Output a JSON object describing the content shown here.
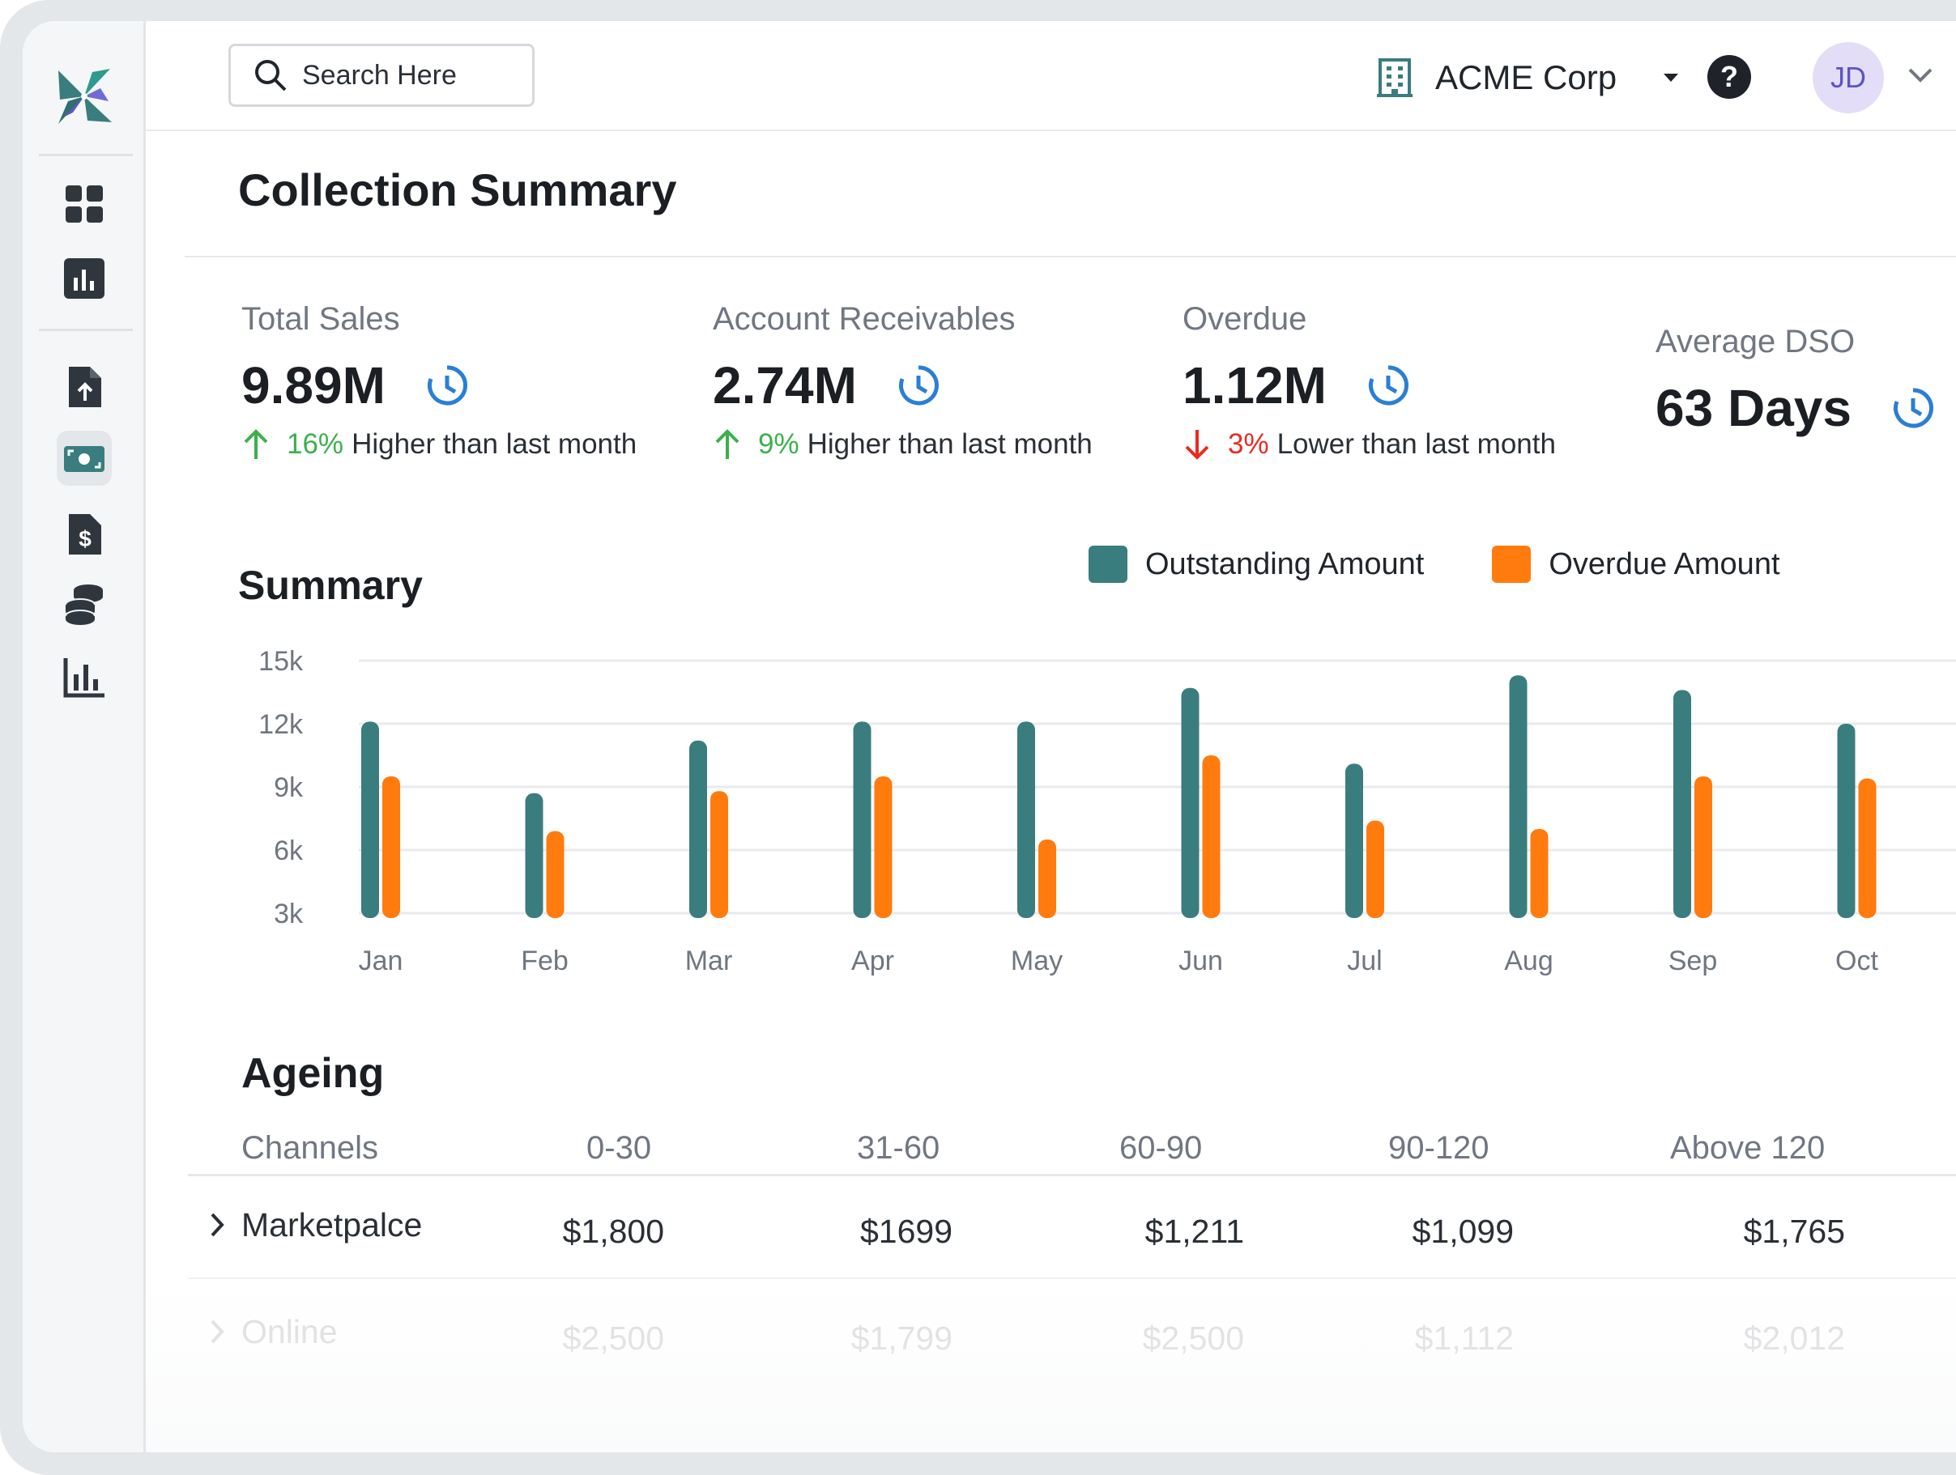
{
  "header": {
    "search_placeholder": "Search Here",
    "org_name": "ACME Corp",
    "help_label": "?",
    "avatar_initials": "JD"
  },
  "sidebar": {
    "icons": [
      "app-logo-icon",
      "dashboard-grid-icon",
      "report-chart-icon",
      "invoice-upload-icon",
      "payments-cash-icon",
      "billing-document-icon",
      "coins-icon",
      "analytics-bar-icon"
    ],
    "active": "payments-cash-icon"
  },
  "page": {
    "title": "Collection Summary"
  },
  "kpis": [
    {
      "label": "Total Sales",
      "value": "9.89M",
      "pct": "16%",
      "trend_text": "Higher than last month",
      "direction": "up"
    },
    {
      "label": "Account Receivables",
      "value": "2.74M",
      "pct": "9%",
      "trend_text": "Higher than last month",
      "direction": "up"
    },
    {
      "label": "Overdue",
      "value": "1.12M",
      "pct": "3%",
      "trend_text": "Lower than last month",
      "direction": "down"
    },
    {
      "label": "Average DSO",
      "value": "63 Days"
    }
  ],
  "chart_section": {
    "title": "Summary",
    "legend": [
      "Outstanding Amount",
      "Overdue Amount"
    ]
  },
  "chart_data": {
    "type": "bar",
    "title": "Summary",
    "categories": [
      "Jan",
      "Feb",
      "Mar",
      "Apr",
      "May",
      "Jun",
      "Jul",
      "Aug",
      "Sep",
      "Oct"
    ],
    "series": [
      {
        "name": "Outstanding Amount",
        "color": "#3a7d7e",
        "values": [
          12100,
          8700,
          11200,
          12100,
          12100,
          13700,
          10100,
          14300,
          13600,
          12000
        ]
      },
      {
        "name": "Overdue Amount",
        "color": "#ff7b0e",
        "values": [
          9500,
          6900,
          8800,
          9500,
          6500,
          10500,
          7400,
          7000,
          9500,
          9400
        ]
      }
    ],
    "y_ticks": [
      "15k",
      "12k",
      "9k",
      "6k",
      "3k"
    ],
    "ylim": [
      3000,
      15000
    ],
    "grid": true,
    "legend_position": "top-right"
  },
  "ageing": {
    "title": "Ageing",
    "columns": [
      "Channels",
      "0-30",
      "31-60",
      "60-90",
      "90-120",
      "Above 120"
    ],
    "rows": [
      {
        "channel": "Marketpalce",
        "values": [
          "$1,800",
          "$1699",
          "$1,211",
          "$1,099",
          "$1,765"
        ]
      },
      {
        "channel": "Online",
        "values": [
          "$2,500",
          "$1,799",
          "$2,500",
          "$1,112",
          "$2,012"
        ]
      }
    ]
  },
  "colors": {
    "accent_teal": "#3a7d7e",
    "accent_orange": "#ff7b0e",
    "up_green": "#3bb04a",
    "down_red": "#ea2a21",
    "clock_blue": "#2a7fd4"
  }
}
